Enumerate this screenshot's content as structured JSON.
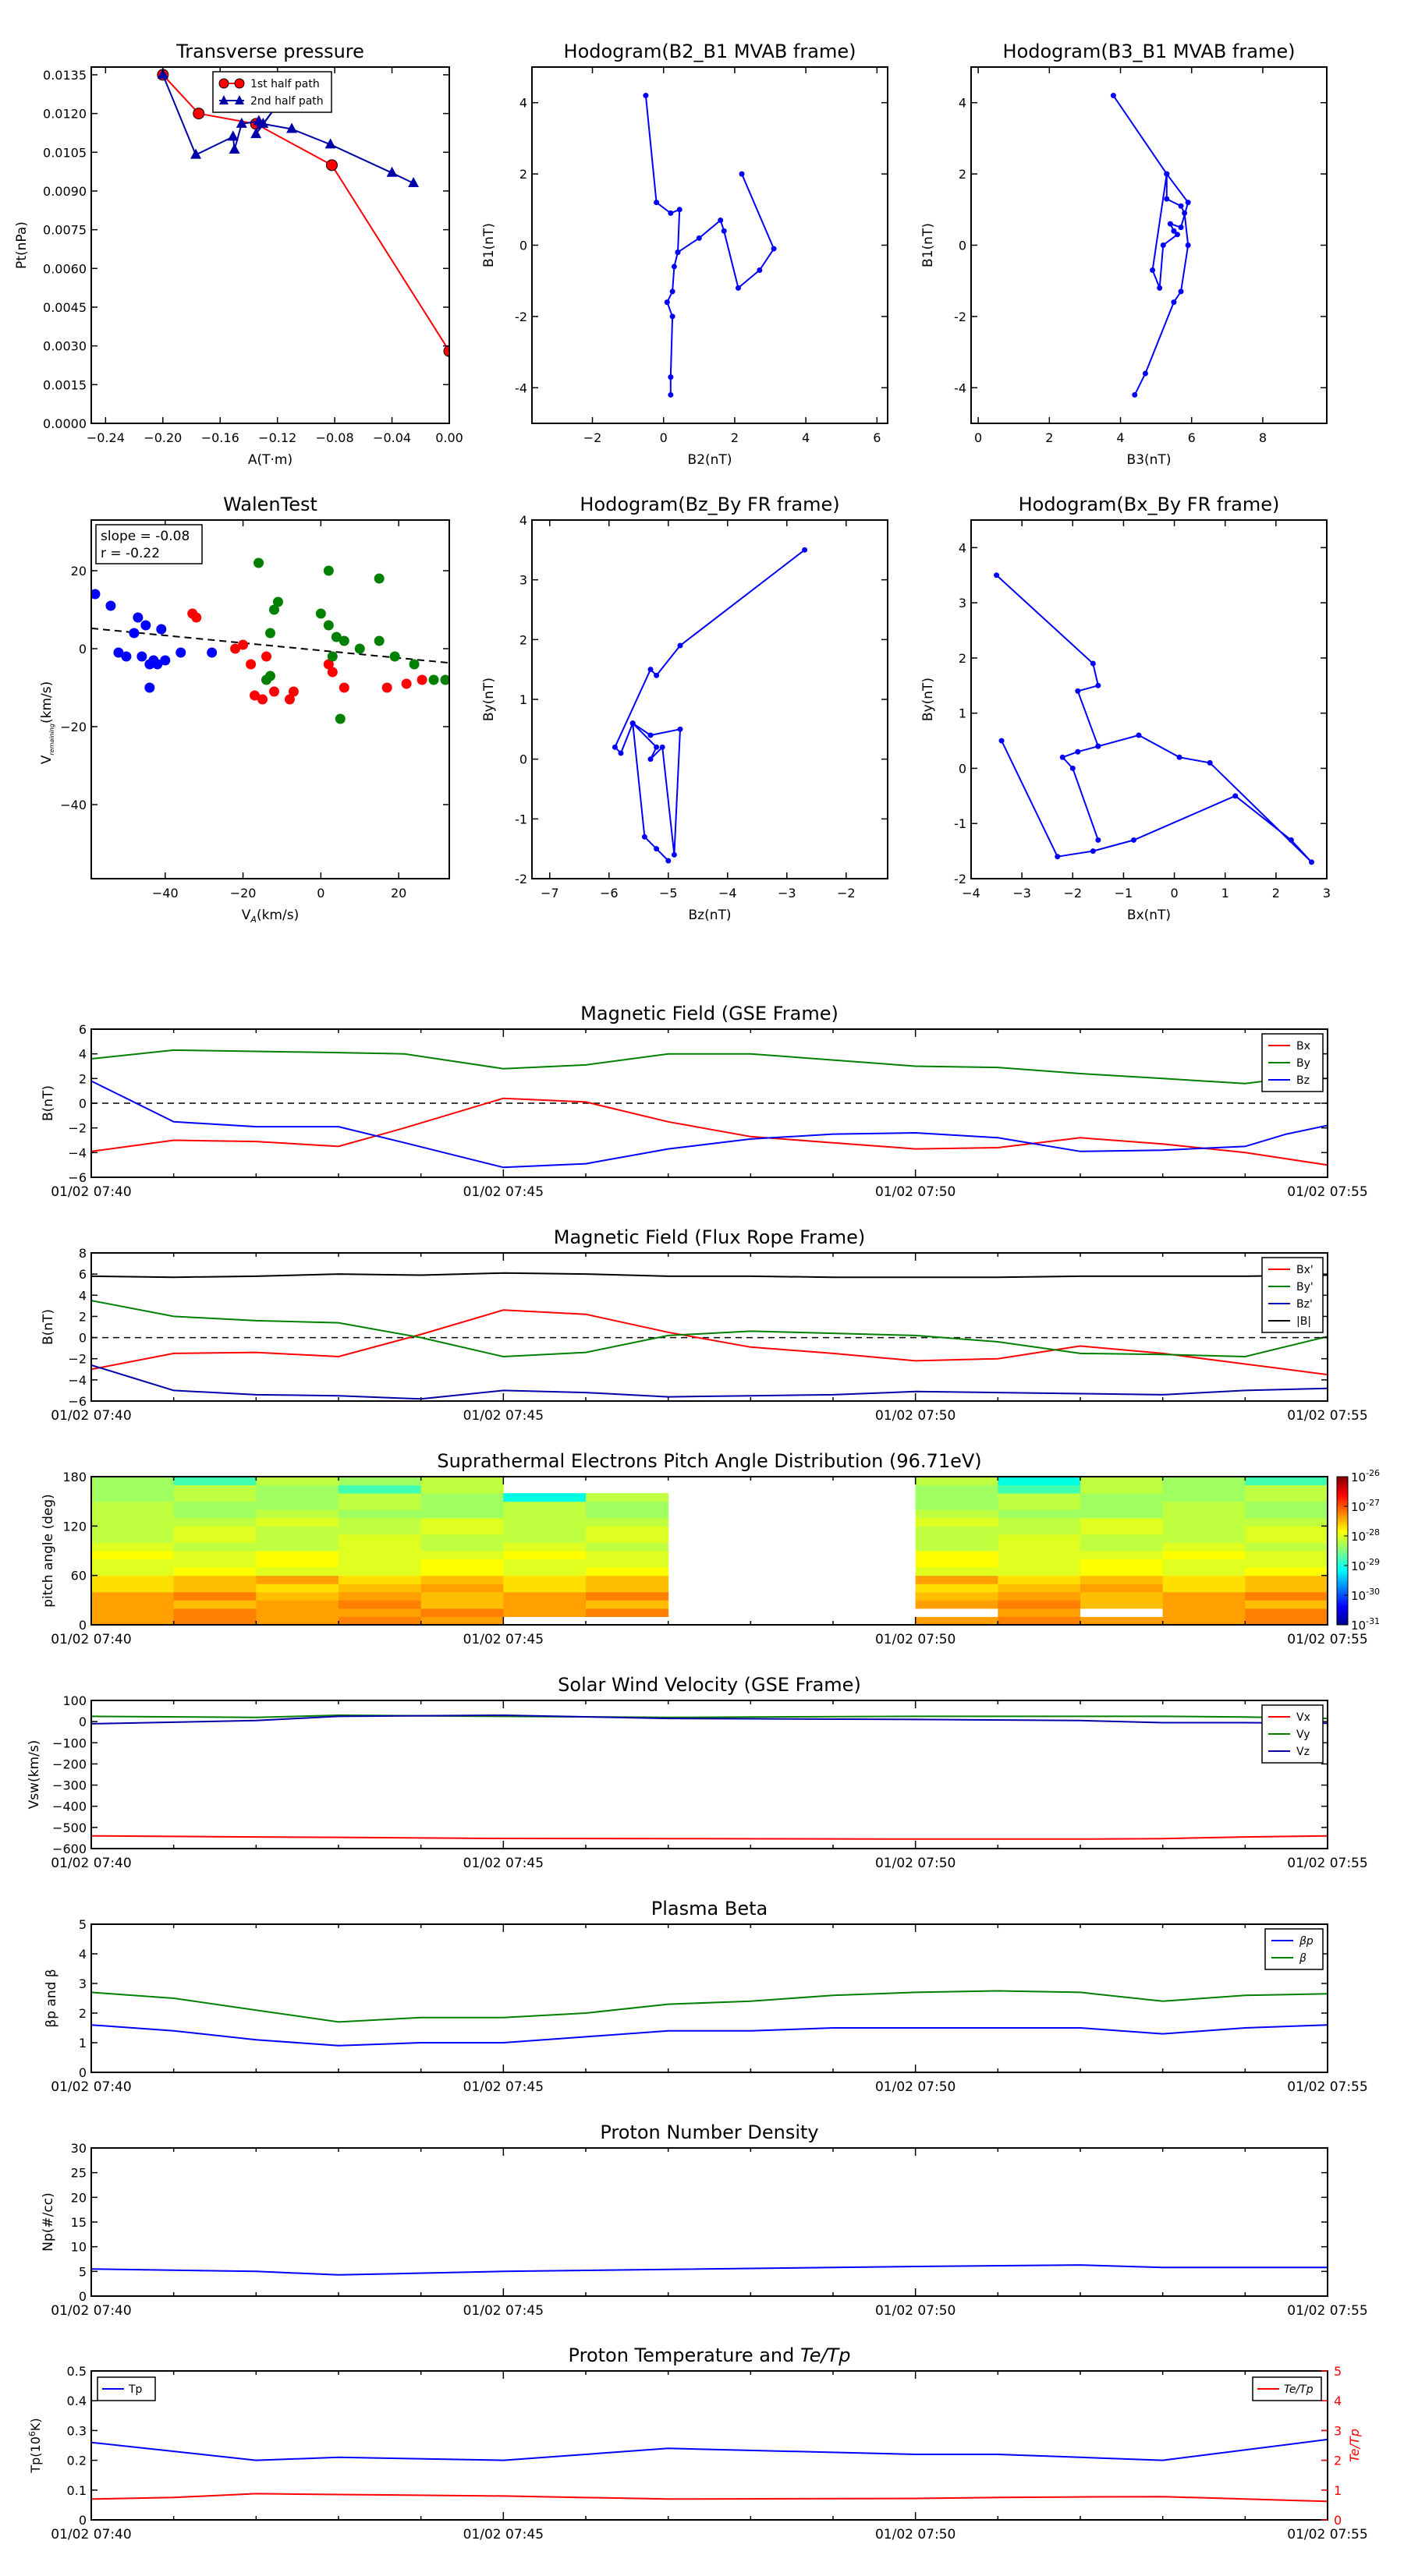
{
  "chart_data": [
    {
      "id": "tp",
      "type": "line",
      "title": "Transverse pressure",
      "xlabel": "A(T·m)",
      "ylabel": "Pt(nPa)",
      "xlim": [
        -0.25,
        0.0
      ],
      "ylim": [
        0.0,
        0.0138
      ],
      "xticks": [
        -0.24,
        -0.2,
        -0.16,
        -0.12,
        -0.08,
        -0.04,
        0.0
      ],
      "xticklabels": [
        "−0.24",
        "−0.20",
        "−0.16",
        "−0.12",
        "−0.08",
        "−0.04",
        "0.00"
      ],
      "yticks": [
        0,
        0.0015,
        0.003,
        0.0045,
        0.006,
        0.0075,
        0.009,
        0.0105,
        0.012,
        0.0135
      ],
      "yticklabels": [
        "0.0000",
        "0.0015",
        "0.0030",
        "0.0045",
        "0.0060",
        "0.0075",
        "0.0090",
        "0.0105",
        "0.0120",
        "0.0135"
      ],
      "legend": "top-center",
      "series": [
        {
          "name": "1st half path",
          "color": "#ff0000",
          "marker": "circle",
          "x": [
            -0.2,
            -0.175,
            -0.135,
            -0.082,
            0.0
          ],
          "y": [
            0.0135,
            0.012,
            0.0116,
            0.01,
            0.0028
          ]
        },
        {
          "name": "2nd half path",
          "color": "#0000aa",
          "marker": "triangle",
          "x": [
            -0.2,
            -0.177,
            -0.151,
            -0.15,
            -0.145,
            -0.133,
            -0.135,
            -0.118,
            -0.13,
            -0.11,
            -0.083,
            -0.04,
            -0.025
          ],
          "y": [
            0.0135,
            0.0104,
            0.0111,
            0.0106,
            0.0116,
            0.0117,
            0.0112,
            0.0125,
            0.0116,
            0.0114,
            0.0108,
            0.0097,
            0.0093
          ]
        }
      ]
    },
    {
      "id": "h1",
      "type": "line",
      "title": "Hodogram(B2_B1 MVAB frame)",
      "xlabel": "B2(nT)",
      "ylabel": "B1(nT)",
      "xlim": [
        -3.7,
        6.3
      ],
      "ylim": [
        -5,
        5
      ],
      "xticks": [
        -2,
        0,
        2,
        4,
        6
      ],
      "yticks": [
        -4,
        -2,
        0,
        2,
        4
      ],
      "series": [
        {
          "color": "#0000ff",
          "marker": "dot",
          "x": [
            -0.5,
            -0.2,
            0.2,
            0.45,
            0.4,
            1.0,
            1.6,
            1.7,
            2.1,
            2.7,
            3.1,
            2.2
          ],
          "y": [
            4.2,
            1.2,
            0.9,
            1.0,
            -0.2,
            0.2,
            0.7,
            0.4,
            -1.2,
            -0.7,
            -0.1,
            2.0
          ]
        },
        {
          "color": "#0000ff",
          "marker": "dot",
          "x": [
            0.4,
            0.3,
            0.25,
            0.1,
            0.25,
            0.2,
            0.2
          ],
          "y": [
            -0.2,
            -0.6,
            -1.3,
            -1.6,
            -2.0,
            -3.7,
            -4.2
          ]
        }
      ]
    },
    {
      "id": "h2",
      "type": "line",
      "title": "Hodogram(B3_B1 MVAB frame)",
      "xlabel": "B3(nT)",
      "ylabel": "B1(nT)",
      "xlim": [
        -0.2,
        9.8
      ],
      "ylim": [
        -5,
        5
      ],
      "xticks": [
        0,
        2,
        4,
        6,
        8
      ],
      "yticks": [
        -4,
        -2,
        0,
        2,
        4
      ],
      "series": [
        {
          "color": "#0000ff",
          "marker": "dot",
          "x": [
            3.8,
            5.3,
            5.9,
            5.7,
            5.4,
            5.5,
            5.6,
            5.2,
            5.1,
            4.9,
            5.3,
            5.3,
            5.7,
            5.8,
            5.9,
            5.7,
            5.5,
            4.7,
            4.4
          ],
          "y": [
            4.2,
            2.0,
            1.2,
            0.5,
            0.6,
            0.4,
            0.3,
            0.0,
            -1.2,
            -0.7,
            2.0,
            1.3,
            1.1,
            0.9,
            0.0,
            -1.3,
            -1.6,
            -3.6,
            -4.2
          ]
        }
      ]
    },
    {
      "id": "wt",
      "type": "scatter",
      "title": "WalenTest",
      "xlabel": "V",
      "xlabel_sub": "A",
      "xlabel_unit": "(km/s)",
      "ylabel": "V",
      "ylabel_sub": "remaining",
      "ylabel_unit": "(km/s)",
      "xlim": [
        -59,
        33
      ],
      "ylim": [
        -59,
        33
      ],
      "xticks": [
        -40,
        -20,
        0,
        20
      ],
      "yticks": [
        -40,
        -20,
        0,
        20
      ],
      "annotation": [
        "slope = -0.08",
        "r = -0.22"
      ],
      "fit": {
        "slope": -0.08,
        "intercept": 0.0,
        "color": "#000000"
      },
      "series": [
        {
          "color": "#0000ff",
          "x": [
            -58,
            -54,
            -52,
            -50,
            -48,
            -47,
            -46,
            -45,
            -44,
            -44,
            -43,
            -42,
            -41,
            -40,
            -36,
            -28
          ],
          "y": [
            14,
            11,
            -1,
            -2,
            4,
            8,
            -2,
            6,
            -4,
            -10,
            -3,
            -4,
            5,
            -3,
            -1,
            -1
          ]
        },
        {
          "color": "#ff0000",
          "x": [
            -33,
            -32,
            -22,
            -20,
            -18,
            -17,
            -15,
            -14,
            -12,
            -8,
            -7,
            2,
            3,
            6,
            17,
            22,
            26
          ],
          "y": [
            9,
            8,
            0,
            1,
            -4,
            -12,
            -13,
            -2,
            -11,
            -13,
            -11,
            -4,
            -6,
            -10,
            -10,
            -9,
            -8
          ]
        },
        {
          "color": "#008000",
          "x": [
            -16,
            -14,
            -13,
            -13,
            -12,
            -11,
            0,
            2,
            2,
            3,
            4,
            5,
            6,
            10,
            15,
            15,
            19,
            24,
            29,
            32
          ],
          "y": [
            22,
            -8,
            -7,
            4,
            10,
            12,
            9,
            6,
            20,
            -2,
            3,
            -18,
            2,
            0,
            2,
            18,
            -2,
            -4,
            -8,
            -8
          ]
        }
      ]
    },
    {
      "id": "h3",
      "type": "line",
      "title": "Hodogram(Bz_By FR frame)",
      "xlabel": "Bz(nT)",
      "ylabel": "By(nT)",
      "xlim": [
        -7.3,
        -1.3
      ],
      "ylim": [
        -2,
        4
      ],
      "xticks": [
        -7,
        -6,
        -5,
        -4,
        -3,
        -2
      ],
      "yticks": [
        -2,
        -1,
        0,
        1,
        2,
        3,
        4
      ],
      "series": [
        {
          "color": "#0000ff",
          "marker": "dot",
          "x": [
            -2.7,
            -4.8,
            -5.2,
            -5.3,
            -5.9,
            -5.8,
            -5.6,
            -5.2,
            -5.3,
            -5.1,
            -4.9,
            -4.8,
            -5.3,
            -5.6,
            -5.4,
            -5.2,
            -5.0
          ],
          "y": [
            3.5,
            1.9,
            1.4,
            1.5,
            0.2,
            0.1,
            0.6,
            0.2,
            0.0,
            0.2,
            -1.6,
            0.5,
            0.4,
            0.6,
            -1.3,
            -1.5,
            -1.7
          ]
        }
      ]
    },
    {
      "id": "h4",
      "type": "line",
      "title": "Hodogram(Bx_By FR frame)",
      "xlabel": "Bx(nT)",
      "ylabel": "By(nT)",
      "xlim": [
        -4,
        3
      ],
      "ylim": [
        -2,
        4.5
      ],
      "xticks": [
        -4,
        -3,
        -2,
        -1,
        0,
        1,
        2,
        3
      ],
      "yticks": [
        -2,
        -1,
        0,
        1,
        2,
        3,
        4
      ],
      "series": [
        {
          "color": "#0000ff",
          "marker": "dot",
          "x": [
            -3.5,
            -1.6,
            -1.5,
            -1.9,
            -1.5,
            -0.7,
            0.1,
            0.7,
            2.7,
            2.3,
            1.2,
            -0.8,
            -1.6,
            -2.3,
            -3.4
          ],
          "y": [
            3.5,
            1.9,
            1.5,
            1.4,
            0.4,
            0.6,
            0.2,
            0.1,
            -1.7,
            -1.3,
            -0.5,
            -1.3,
            -1.5,
            -1.6,
            0.5
          ]
        },
        {
          "color": "#0000ff",
          "marker": "dot",
          "x": [
            -1.5,
            -1.9,
            -2.2,
            -2.0,
            -1.5
          ],
          "y": [
            0.4,
            0.3,
            0.2,
            0.0,
            -1.3
          ]
        }
      ]
    },
    {
      "id": "mag",
      "type": "line",
      "title": "Magnetic Field (GSE Frame)",
      "ylabel": "B(nT)",
      "ylim": [
        -6,
        6
      ],
      "yticks": [
        -6,
        -4,
        -2,
        0,
        2,
        4,
        6
      ],
      "xtimes": [
        0,
        1,
        2,
        3,
        4,
        5,
        6,
        7,
        8,
        9,
        10,
        11,
        12,
        13,
        14,
        15
      ],
      "x": [
        0,
        1,
        2,
        3,
        3.8,
        5,
        6,
        7,
        8,
        9,
        10,
        11,
        12,
        13,
        14,
        14.5,
        15
      ],
      "hline": 0,
      "legend": "top-right",
      "series": [
        {
          "name": "Bx",
          "color": "#ff0000",
          "values": [
            -3.9,
            -3.0,
            -3.1,
            -3.5,
            -2.0,
            0.4,
            0.1,
            -1.5,
            -2.7,
            -3.2,
            -3.7,
            -3.6,
            -2.8,
            -3.3,
            -4.0,
            -4.5,
            -5.0
          ]
        },
        {
          "name": "By",
          "color": "#008000",
          "values": [
            3.6,
            4.3,
            4.2,
            4.1,
            4.0,
            2.8,
            3.1,
            4.0,
            4.0,
            3.5,
            3.0,
            2.9,
            2.4,
            2.0,
            1.6,
            2.0,
            2.0
          ]
        },
        {
          "name": "Bz",
          "color": "#0000ff",
          "values": [
            1.8,
            -1.5,
            -1.9,
            -1.9,
            -3.2,
            -5.2,
            -4.9,
            -3.7,
            -2.9,
            -2.5,
            -2.4,
            -2.8,
            -3.9,
            -3.8,
            -3.5,
            -2.5,
            -1.8
          ]
        }
      ]
    },
    {
      "id": "magfr",
      "type": "line",
      "title": "Magnetic Field (Flux Rope Frame)",
      "ylabel": "B(nT)",
      "ylim": [
        -6,
        8
      ],
      "yticks": [
        -6,
        -4,
        -2,
        0,
        2,
        4,
        6,
        8
      ],
      "x": [
        0,
        1,
        2,
        3,
        4,
        5,
        6,
        7,
        8,
        9,
        10,
        11,
        12,
        13,
        14,
        15
      ],
      "hline": 0,
      "legend": "top-right",
      "series": [
        {
          "name": "Bx'",
          "color": "#ff0000",
          "values": [
            -3.0,
            -1.5,
            -1.4,
            -1.8,
            0.3,
            2.6,
            2.2,
            0.5,
            -0.9,
            -1.5,
            -2.2,
            -2.0,
            -0.8,
            -1.5,
            -2.5,
            -3.5
          ]
        },
        {
          "name": "By'",
          "color": "#008000",
          "values": [
            3.5,
            2.0,
            1.6,
            1.4,
            0.0,
            -1.8,
            -1.4,
            0.2,
            0.6,
            0.4,
            0.2,
            -0.4,
            -1.5,
            -1.6,
            -1.8,
            0.1
          ]
        },
        {
          "name": "Bz'",
          "color": "#0000aa",
          "values": [
            -2.6,
            -5.0,
            -5.4,
            -5.5,
            -5.8,
            -5.0,
            -5.2,
            -5.6,
            -5.5,
            -5.4,
            -5.1,
            -5.2,
            -5.3,
            -5.4,
            -5.0,
            -4.8
          ]
        },
        {
          "name": "|B|",
          "color": "#000000",
          "values": [
            5.8,
            5.7,
            5.8,
            6.0,
            5.9,
            6.1,
            6.0,
            5.8,
            5.8,
            5.7,
            5.7,
            5.7,
            5.8,
            5.8,
            5.8,
            5.9
          ]
        }
      ]
    },
    {
      "id": "pad",
      "type": "heatmap",
      "title": "Suprathermal Electrons Pitch Angle Distribution (96.71eV)",
      "ylabel": "pitch angle (deg)",
      "ylim": [
        0,
        180
      ],
      "yticks": [
        0,
        60,
        120,
        180
      ],
      "colorbar": {
        "exponents": [
          "-31",
          "-30",
          "-29",
          "-28",
          "-27",
          "-26"
        ],
        "base": "10"
      },
      "segments": [
        {
          "x0": 0,
          "x1": 7
        },
        {
          "x0": 10,
          "x1": 15
        }
      ]
    },
    {
      "id": "vsw",
      "type": "line",
      "title": "Solar Wind Velocity (GSE Frame)",
      "ylabel": "Vsw(km/s)",
      "ylim": [
        -600,
        100
      ],
      "yticks": [
        -600,
        -500,
        -400,
        -300,
        -200,
        -100,
        0,
        100
      ],
      "yticklabels": [
        "−600",
        "−500",
        "−400",
        "−300",
        "−200",
        "−100",
        "0",
        "100"
      ],
      "x": [
        0,
        2,
        3,
        5,
        7,
        10,
        12,
        13,
        14,
        15
      ],
      "legend": "top-right",
      "series": [
        {
          "name": "Vx",
          "color": "#ff0000",
          "values": [
            -540,
            -545,
            -547,
            -552,
            -553,
            -555,
            -555,
            -553,
            -545,
            -540
          ]
        },
        {
          "name": "Vy",
          "color": "#008000",
          "values": [
            25,
            20,
            30,
            25,
            20,
            25,
            25,
            25,
            22,
            15
          ]
        },
        {
          "name": "Vz",
          "color": "#0000aa",
          "values": [
            -10,
            5,
            25,
            30,
            15,
            10,
            5,
            -5,
            -5,
            -8
          ]
        }
      ]
    },
    {
      "id": "beta",
      "type": "line",
      "title": "Plasma Beta",
      "ylabel": "βp and β",
      "ylim": [
        0,
        5
      ],
      "yticks": [
        0,
        1,
        2,
        3,
        4,
        5
      ],
      "x": [
        0,
        1,
        2,
        3,
        4,
        5,
        6,
        7,
        8,
        9,
        10,
        11,
        12,
        13,
        14,
        15
      ],
      "legend": "top-right",
      "series": [
        {
          "name": "βp",
          "color": "#0000ff",
          "values": [
            1.6,
            1.4,
            1.1,
            0.9,
            1.0,
            1.0,
            1.2,
            1.4,
            1.4,
            1.5,
            1.5,
            1.5,
            1.5,
            1.3,
            1.5,
            1.6
          ]
        },
        {
          "name": "β",
          "color": "#008000",
          "values": [
            2.7,
            2.5,
            2.1,
            1.7,
            1.85,
            1.85,
            2.0,
            2.3,
            2.4,
            2.6,
            2.7,
            2.75,
            2.7,
            2.4,
            2.6,
            2.65
          ]
        }
      ]
    },
    {
      "id": "np",
      "type": "line",
      "title": "Proton Number Density",
      "ylabel": "Np(#/cc)",
      "ylim": [
        0,
        30
      ],
      "yticks": [
        0,
        5,
        10,
        15,
        20,
        25,
        30
      ],
      "x": [
        0,
        2,
        3,
        5,
        7,
        10,
        12,
        13,
        15
      ],
      "series": [
        {
          "color": "#0000ff",
          "values": [
            5.5,
            5.0,
            4.3,
            5.0,
            5.4,
            6.0,
            6.3,
            5.8,
            5.8
          ]
        }
      ]
    },
    {
      "id": "temp",
      "type": "line",
      "title": "Proton Temperature and",
      "title_math": "Te/Tp",
      "ylabel": "Tp(10",
      "ylabel_sup": "6",
      "ylabel_tail": "K)",
      "y2label": "Te/Tp",
      "ylim": [
        0,
        0.5
      ],
      "yticks": [
        0,
        0.1,
        0.2,
        0.3,
        0.4,
        0.5
      ],
      "y2lim": [
        0,
        5
      ],
      "y2ticks": [
        0,
        1,
        2,
        3,
        4,
        5
      ],
      "x": [
        0,
        1,
        2,
        3,
        5,
        7,
        10,
        11,
        12,
        13,
        15
      ],
      "legend": "left: top-left; right: top-right",
      "series": [
        {
          "name": "Tp",
          "color": "#0000ff",
          "axis": "left",
          "values": [
            0.26,
            0.23,
            0.2,
            0.21,
            0.2,
            0.24,
            0.22,
            0.22,
            0.21,
            0.2,
            0.27
          ]
        },
        {
          "name": "Te/Tp",
          "color": "#ff0000",
          "axis": "right",
          "values": [
            0.7,
            0.75,
            0.88,
            0.85,
            0.8,
            0.7,
            0.72,
            0.75,
            0.77,
            0.78,
            0.62
          ]
        }
      ]
    }
  ],
  "time_axis": {
    "ticks": [
      0,
      5,
      10,
      15
    ],
    "labels": [
      "01/02 07:40",
      "01/02 07:45",
      "01/02 07:50",
      "01/02 07:55"
    ]
  }
}
